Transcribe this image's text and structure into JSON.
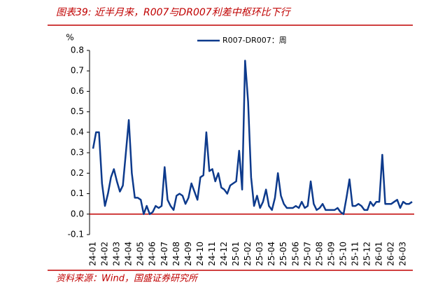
{
  "chart_data": {
    "type": "line",
    "title": "图表39:  近半月来，R007与DR007利差中枢环比下行",
    "source": "资料来源：Wind，国盛证券研究所",
    "y_unit": "%",
    "categories": [
      "24-01",
      null,
      null,
      null,
      "24-02",
      null,
      null,
      null,
      "24-03",
      null,
      null,
      null,
      "24-04",
      null,
      null,
      null,
      "24-05",
      null,
      null,
      null,
      "24-06",
      null,
      null,
      null,
      "24-07",
      null,
      null,
      null,
      "24-08",
      null,
      null,
      null,
      "24-09",
      null,
      null,
      null,
      "24-10",
      null,
      null,
      null,
      "24-11",
      null,
      null,
      null,
      "24-12",
      null,
      null,
      null,
      "25-01",
      null,
      null,
      null,
      "25-02",
      null,
      null,
      null,
      "25-03",
      null,
      null,
      null,
      "25-04",
      null,
      null,
      null,
      "25-05",
      null,
      null,
      null,
      "25-06",
      null,
      null,
      null,
      "25-07",
      null,
      null,
      null,
      "25-08",
      null,
      null,
      null,
      "25-09",
      null,
      null,
      null,
      "25-10",
      null,
      null,
      null,
      "25-11",
      null,
      null,
      null,
      "25-12",
      null,
      null,
      null,
      "26-01",
      null,
      null,
      null,
      "26-02",
      null,
      null,
      null,
      "26-03",
      null,
      null,
      null
    ],
    "series": [
      {
        "name": "R007-DR007：周",
        "color": "#0d3a8c",
        "values": [
          0.32,
          0.4,
          0.4,
          0.15,
          0.04,
          0.1,
          0.18,
          0.22,
          0.16,
          0.11,
          0.14,
          0.3,
          0.46,
          0.2,
          0.08,
          0.08,
          0.07,
          0.0,
          0.04,
          0.0,
          0.01,
          0.04,
          0.03,
          0.04,
          0.23,
          0.07,
          0.04,
          0.02,
          0.09,
          0.1,
          0.09,
          0.05,
          0.08,
          0.15,
          0.11,
          0.07,
          0.18,
          0.19,
          0.4,
          0.21,
          0.22,
          0.16,
          0.2,
          0.13,
          0.12,
          0.1,
          0.14,
          0.15,
          0.16,
          0.31,
          0.12,
          0.75,
          0.55,
          0.18,
          0.04,
          0.09,
          0.03,
          0.06,
          0.12,
          0.04,
          0.02,
          0.08,
          0.2,
          0.09,
          0.05,
          0.03,
          0.03,
          0.03,
          0.04,
          0.03,
          0.06,
          0.03,
          0.04,
          0.16,
          0.05,
          0.02,
          0.03,
          0.05,
          0.02,
          0.02,
          0.02,
          0.02,
          0.03,
          0.01,
          0.0,
          0.08,
          0.17,
          0.04,
          0.04,
          0.05,
          0.04,
          0.02,
          0.02,
          0.06,
          0.04,
          0.06,
          0.06,
          0.29,
          0.05,
          0.05,
          0.05,
          0.06,
          0.07,
          0.03,
          0.06,
          0.05,
          0.05,
          0.06
        ]
      }
    ],
    "ylim": [
      -0.1,
      0.8
    ],
    "yticks": [
      -0.1,
      {
        "value": 0,
        "label": "0.0"
      },
      0.1,
      0.2,
      0.3,
      0.4,
      0.5,
      0.6,
      0.7,
      0.8
    ],
    "zero_line_color": "#c00000",
    "legend": "top-center"
  }
}
